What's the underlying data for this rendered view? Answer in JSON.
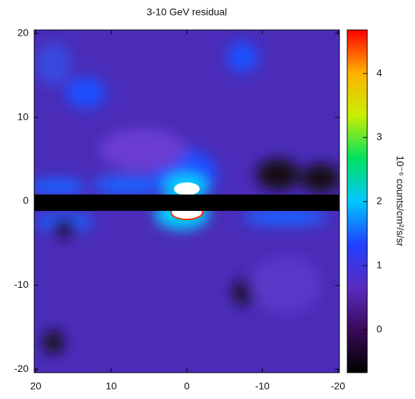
{
  "chart_data": {
    "type": "heatmap",
    "title": "3-10 GeV residual",
    "xlim": [
      20.2,
      -20.2
    ],
    "xticks": [
      20,
      10,
      0,
      -10,
      -20
    ],
    "ylim": [
      -20.4,
      20.4
    ],
    "yticks": [
      -20,
      -10,
      0,
      10,
      20
    ],
    "colorbar": {
      "label": "10⁻⁶ counts/cm²/s/sr",
      "lim": [
        -0.67,
        4.68
      ],
      "ticks": [
        0,
        1,
        2,
        3,
        4
      ],
      "colormap": [
        "#000000",
        "#3a0a5a",
        "#5a2cc0",
        "#2040ff",
        "#00c8ff",
        "#00e060",
        "#c8f000",
        "#ffb000",
        "#ff0000"
      ]
    }
  }
}
